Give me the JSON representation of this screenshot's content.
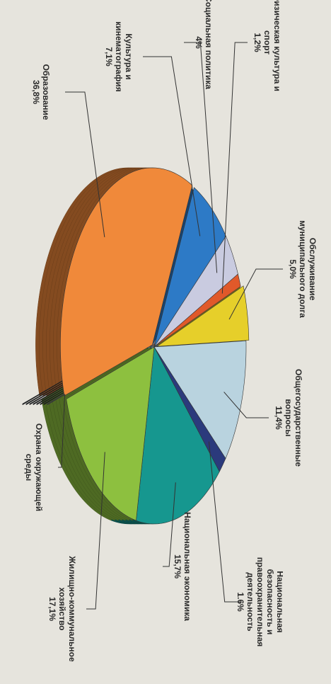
{
  "chart_data": {
    "type": "pie",
    "categories": [
      "Обслуживание муниципального долга",
      "Общегосударственные вопросы",
      "Национальная безопасность и правоохранительная деятельность",
      "Национальная экономика",
      "Жилищно-коммунальное хозяйство",
      "Охрана окружающей среды",
      "Образование",
      "Культура и кинематография",
      "Социальная политика",
      "Физическая культура и спорт"
    ],
    "values": [
      5.0,
      11.4,
      1.6,
      15.7,
      17.1,
      0.1,
      36.8,
      7.1,
      4,
      1.2
    ],
    "value_labels": [
      "5,0%",
      "11,4%",
      "1,6%",
      "15,7%",
      "17,1%",
      null,
      "36,8%",
      "7,1%",
      "4%",
      "1,2%"
    ],
    "colors": [
      "#e6cf2a",
      "#b9d3df",
      "#2b3a7c",
      "#16978f",
      "#8dc03f",
      "#3b3e42",
      "#f0893a",
      "#2d7ac6",
      "#c9cbe0",
      "#e0592a"
    ]
  }
}
